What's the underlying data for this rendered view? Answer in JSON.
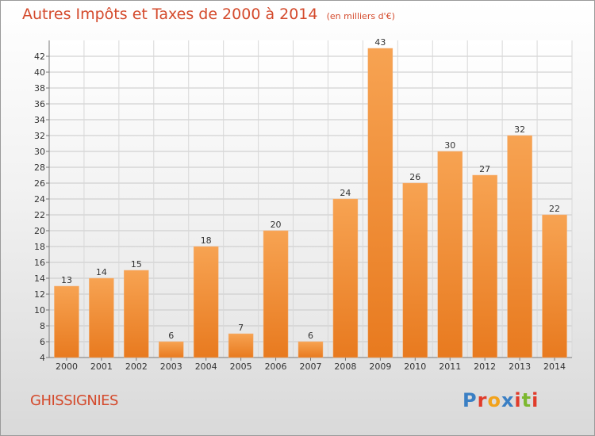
{
  "chart_data": {
    "type": "bar",
    "title": "Autres Impôts et Taxes de 2000 à 2014",
    "subtitle": "(en milliers d'€)",
    "categories": [
      "2000",
      "2001",
      "2002",
      "2003",
      "2004",
      "2005",
      "2006",
      "2007",
      "2008",
      "2009",
      "2010",
      "2011",
      "2012",
      "2013",
      "2014"
    ],
    "values": [
      13,
      14,
      15,
      6,
      18,
      7,
      20,
      6,
      24,
      43,
      26,
      30,
      27,
      32,
      22
    ],
    "ylim": [
      4,
      44
    ],
    "yticks": [
      4,
      6,
      8,
      10,
      12,
      14,
      16,
      18,
      20,
      22,
      24,
      26,
      28,
      30,
      32,
      34,
      36,
      38,
      40,
      42
    ],
    "grid": true,
    "bar_color": "#f0862b"
  },
  "footer": {
    "commune": "GHISSIGNIES",
    "logo": "Proxiti"
  },
  "colors": {
    "title": "#d44a2c",
    "logo": [
      "#3a7fc4",
      "#e03b2a",
      "#f2a21b",
      "#3a7fc4",
      "#e03b2a",
      "#7cb82f",
      "#e03b2a"
    ]
  }
}
